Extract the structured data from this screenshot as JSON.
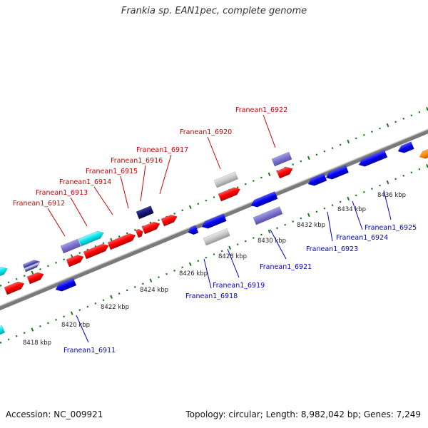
{
  "title": "Frankia sp. EAN1pec, complete genome",
  "footer": {
    "accession": "Accession: NC_009921",
    "summary": "Topology: circular; Length: 8,982,042 bp; Genes: 7,249"
  },
  "colors": {
    "forward_label": "#cc0000",
    "reverse_label": "#0000cc",
    "backbone": "#888888",
    "tick": "#1a7a1a"
  },
  "kbp_labels": [
    "8418 kbp",
    "8420 kbp",
    "8422 kbp",
    "8424 kbp",
    "8426 kbp",
    "8428 kbp",
    "8430 kbp",
    "8432 kbp",
    "8434 kbp",
    "8436 kbp"
  ],
  "forward_genes": [
    "Franean1_6912",
    "Franean1_6913",
    "Franean1_6914",
    "Franean1_6915",
    "Franean1_6916",
    "Franean1_6917",
    "Franean1_6920",
    "Franean1_6922"
  ],
  "reverse_genes": [
    "Franean1_6911",
    "Franean1_6918",
    "Franean1_6919",
    "Franean1_6921",
    "Franean1_6923",
    "Franean1_6924",
    "Franean1_6925"
  ]
}
